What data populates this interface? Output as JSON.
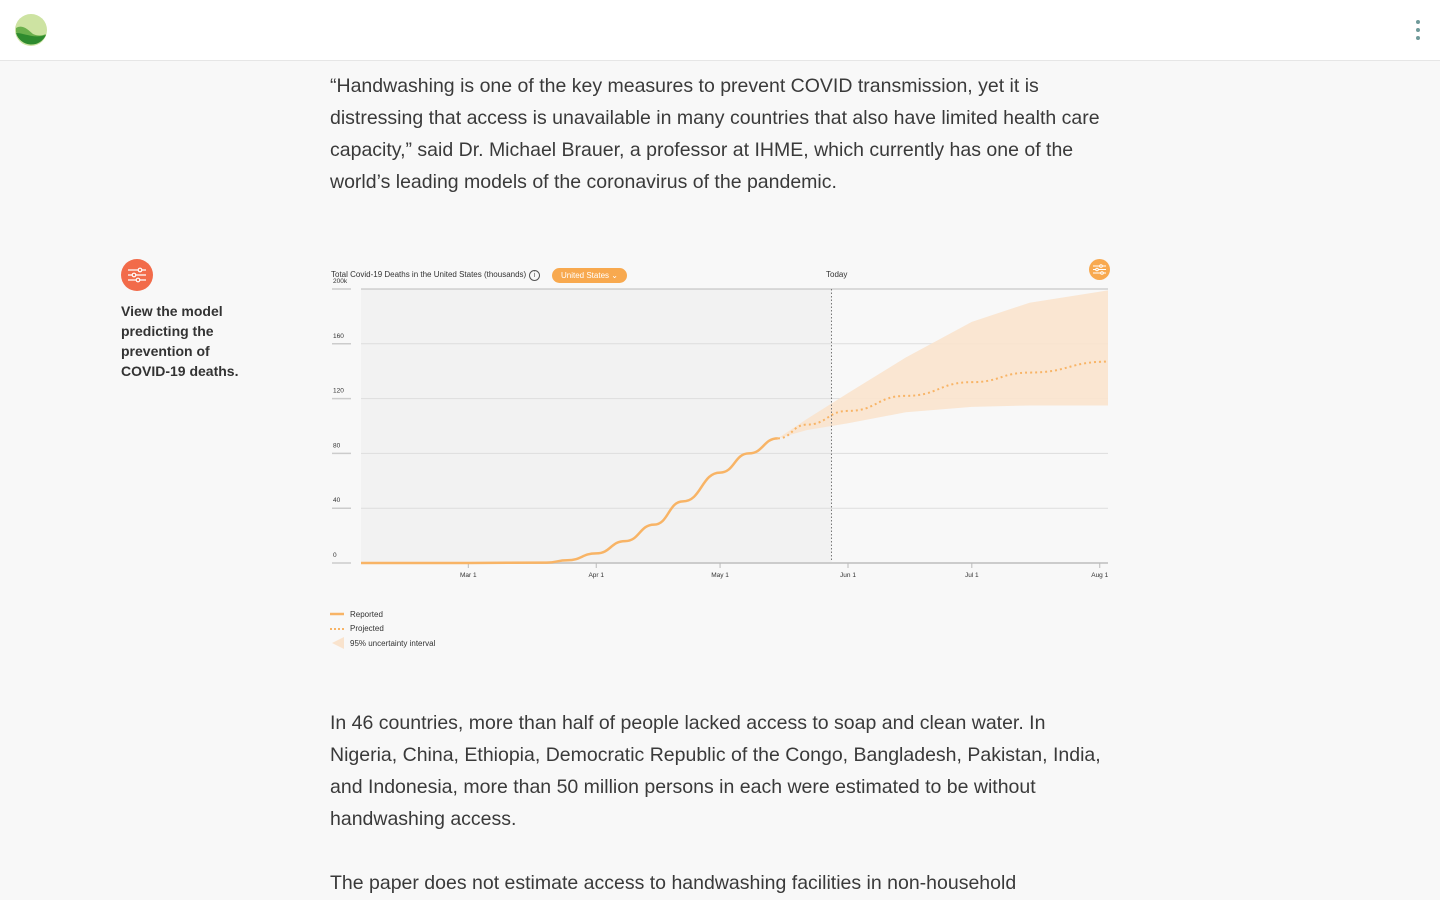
{
  "header": {
    "logo_icon": "leaf-globe-logo",
    "menu_icon": "kebab-menu-icon"
  },
  "paragraphs": [
    "“Handwashing is one of the key measures to prevent COVID transmission, yet it is distressing that access is unavailable in many countries that also have limited health care capacity,” said Dr. Michael Brauer, a professor at IHME, which currently has one of the world’s leading models of the coronavirus of the pandemic.",
    "In 46 countries, more than half of people lacked access to soap and clean water. In Nigeria, China, Ethiopia, Democratic Republic of the Congo, Bangladesh, Pakistan, India, and Indonesia, more than 50 million persons in each were estimated to be without handwashing access.",
    "The paper does not estimate access to handwashing facilities in non-household"
  ],
  "sidebar": {
    "icon": "sliders-icon",
    "text": "View the model predicting the prevention of COVID-19 deaths.",
    "accent": "#f26b4a"
  },
  "chart_data": {
    "type": "line",
    "title": "Total Covid-19 Deaths in the United States (thousands)",
    "country_selector": "United States",
    "today_label": "Today",
    "today_date": "2020-05-28",
    "xlim": [
      "2020-02-04",
      "2020-08-03"
    ],
    "ylim": [
      0,
      200
    ],
    "y_ticks": [
      "0",
      "40",
      "80",
      "120",
      "160",
      "200k"
    ],
    "y_tick_values": [
      0,
      40,
      80,
      120,
      160,
      200
    ],
    "x_ticks": [
      {
        "date": "2020-03-01",
        "label": "Mar 1"
      },
      {
        "date": "2020-04-01",
        "label": "Apr 1"
      },
      {
        "date": "2020-05-01",
        "label": "May 1"
      },
      {
        "date": "2020-06-01",
        "label": "Jun 1"
      },
      {
        "date": "2020-07-01",
        "label": "Jul 1"
      },
      {
        "date": "2020-08-01",
        "label": "Aug 1"
      }
    ],
    "grid": true,
    "color": "#f8b466",
    "band_color": "#f9e3cd",
    "series": [
      {
        "name": "Reported",
        "style": "solid",
        "points": [
          [
            "2020-02-04",
            0
          ],
          [
            "2020-03-01",
            0
          ],
          [
            "2020-03-20",
            0.3
          ],
          [
            "2020-03-25",
            2
          ],
          [
            "2020-04-01",
            7
          ],
          [
            "2020-04-08",
            16
          ],
          [
            "2020-04-15",
            28
          ],
          [
            "2020-04-22",
            45
          ],
          [
            "2020-05-01",
            66
          ],
          [
            "2020-05-08",
            80
          ],
          [
            "2020-05-15",
            91
          ]
        ]
      },
      {
        "name": "Projected",
        "style": "dotted",
        "points": [
          [
            "2020-05-15",
            91
          ],
          [
            "2020-05-22",
            101
          ],
          [
            "2020-06-01",
            111
          ],
          [
            "2020-06-15",
            122
          ],
          [
            "2020-07-01",
            132
          ],
          [
            "2020-07-15",
            139
          ],
          [
            "2020-08-03",
            147
          ]
        ]
      }
    ],
    "uncertainty": {
      "name": "95% uncertainty interval",
      "upper": [
        [
          "2020-05-15",
          91
        ],
        [
          "2020-05-22",
          105
        ],
        [
          "2020-06-01",
          124
        ],
        [
          "2020-06-15",
          150
        ],
        [
          "2020-07-01",
          176
        ],
        [
          "2020-07-15",
          190
        ],
        [
          "2020-08-03",
          199
        ]
      ],
      "lower": [
        [
          "2020-05-15",
          91
        ],
        [
          "2020-05-22",
          97
        ],
        [
          "2020-06-01",
          102
        ],
        [
          "2020-06-15",
          110
        ],
        [
          "2020-07-01",
          114
        ],
        [
          "2020-07-15",
          115
        ],
        [
          "2020-08-03",
          115
        ]
      ]
    },
    "legend": {
      "placement": "bottom-left",
      "items": [
        "Reported",
        "Projected",
        "95% uncertainty interval"
      ]
    }
  }
}
